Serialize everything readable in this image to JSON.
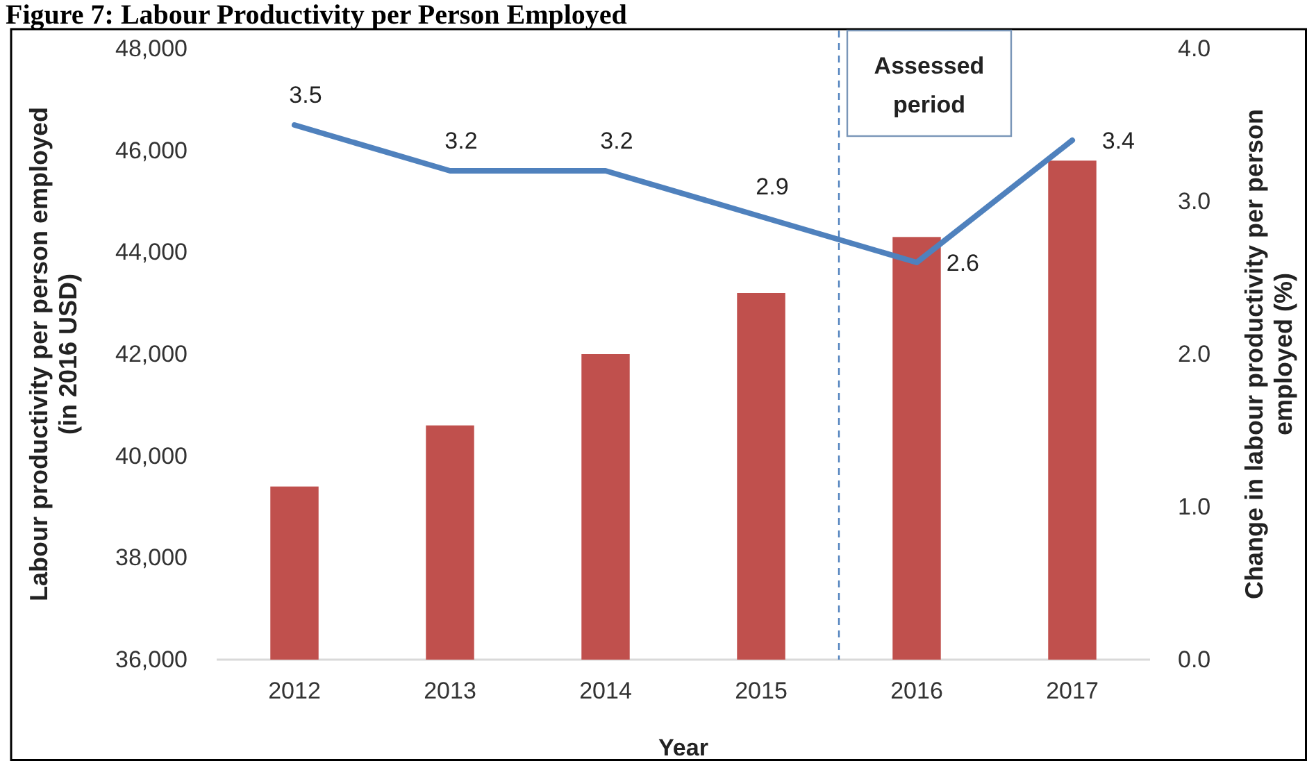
{
  "chart_data": {
    "type": "bar",
    "title": "Figure 7: Labour Productivity per Person Employed",
    "xlabel": "Year",
    "ylabel": "Labour productivity per person employed (in 2016 USD)",
    "y2label": "Change in labour productivity per person employed (%)",
    "x": [
      2012,
      2013,
      2014,
      2015,
      2016,
      2017
    ],
    "xlim": [
      2011.5,
      2017.5
    ],
    "xticks": [
      2012,
      2013,
      2014,
      2015,
      2016,
      2017
    ],
    "ylim": [
      36000,
      48000
    ],
    "yticks": [
      {
        "value": 36000,
        "label": "36,000"
      },
      {
        "value": 38000,
        "label": "38,000"
      },
      {
        "value": 40000,
        "label": "40,000"
      },
      {
        "value": 42000,
        "label": "42,000"
      },
      {
        "value": 44000,
        "label": "44,000"
      },
      {
        "value": 46000,
        "label": "46,000"
      },
      {
        "value": 48000,
        "label": "48,000"
      }
    ],
    "y2lim": [
      0,
      4
    ],
    "y2ticks": [
      {
        "value": 0,
        "label": "0.0"
      },
      {
        "value": 1,
        "label": "1.0"
      },
      {
        "value": 2,
        "label": "2.0"
      },
      {
        "value": 3,
        "label": "3.0"
      },
      {
        "value": 4,
        "label": "4.0"
      }
    ],
    "series": [
      {
        "color": "#c0504d",
        "values": [
          39400,
          40600,
          42000,
          43200,
          44300,
          45800
        ]
      },
      {
        "type": "line",
        "axis": "y2",
        "color": "#4f81bd",
        "values": [
          3.5,
          3.2,
          3.2,
          2.9,
          2.6,
          3.4
        ],
        "value_labels": [
          "3.5",
          "3.2",
          "3.2",
          "2.9",
          "2.6",
          "3.4"
        ]
      }
    ],
    "ref_lines": [
      {
        "axis": "x",
        "value": 2015.5,
        "label": "Assessed period",
        "color": "#4f81bd",
        "line_style": "dashed"
      }
    ]
  }
}
